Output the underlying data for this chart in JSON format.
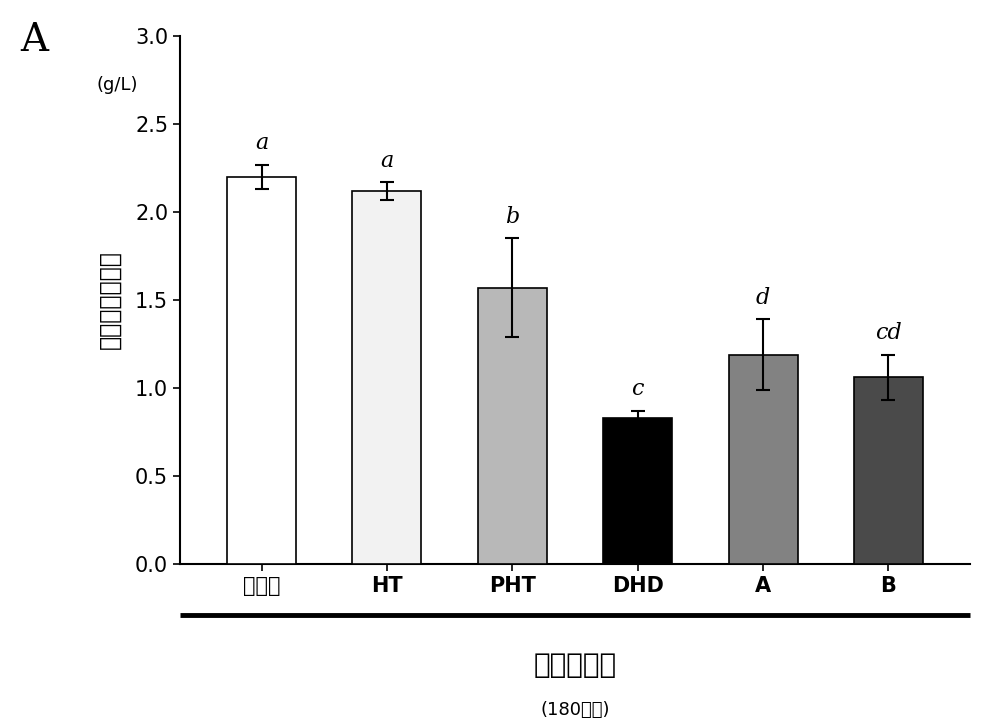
{
  "categories": [
    "对照组",
    "HT",
    "PHT",
    "DHD",
    "A",
    "B"
  ],
  "values": [
    2.2,
    2.12,
    1.57,
    0.83,
    1.19,
    1.06
  ],
  "errors": [
    0.07,
    0.05,
    0.28,
    0.04,
    0.2,
    0.13
  ],
  "bar_colors": [
    "#ffffff",
    "#f2f2f2",
    "#b8b8b8",
    "#000000",
    "#828282",
    "#4a4a4a"
  ],
  "bar_edgecolor": "#000000",
  "significance_labels": [
    "a",
    "a",
    "b",
    "c",
    "d",
    "cd"
  ],
  "ylabel_chinese": "血液中酒精浓度",
  "ylabel_unit": "(g/L)",
  "xlabel_main": "酒精给药后",
  "xlabel_sub": "(180分钟)",
  "panel_label": "A",
  "ylim": [
    0.0,
    3.0
  ],
  "yticks": [
    0.0,
    0.5,
    1.0,
    1.5,
    2.0,
    2.5,
    3.0
  ],
  "bar_width": 0.55,
  "background_color": "#ffffff",
  "xlabel_fontsize": 20,
  "xlabel_sub_fontsize": 13,
  "tick_fontsize": 15,
  "label_fontsize": 17,
  "sig_fontsize": 16,
  "panel_fontsize": 28
}
